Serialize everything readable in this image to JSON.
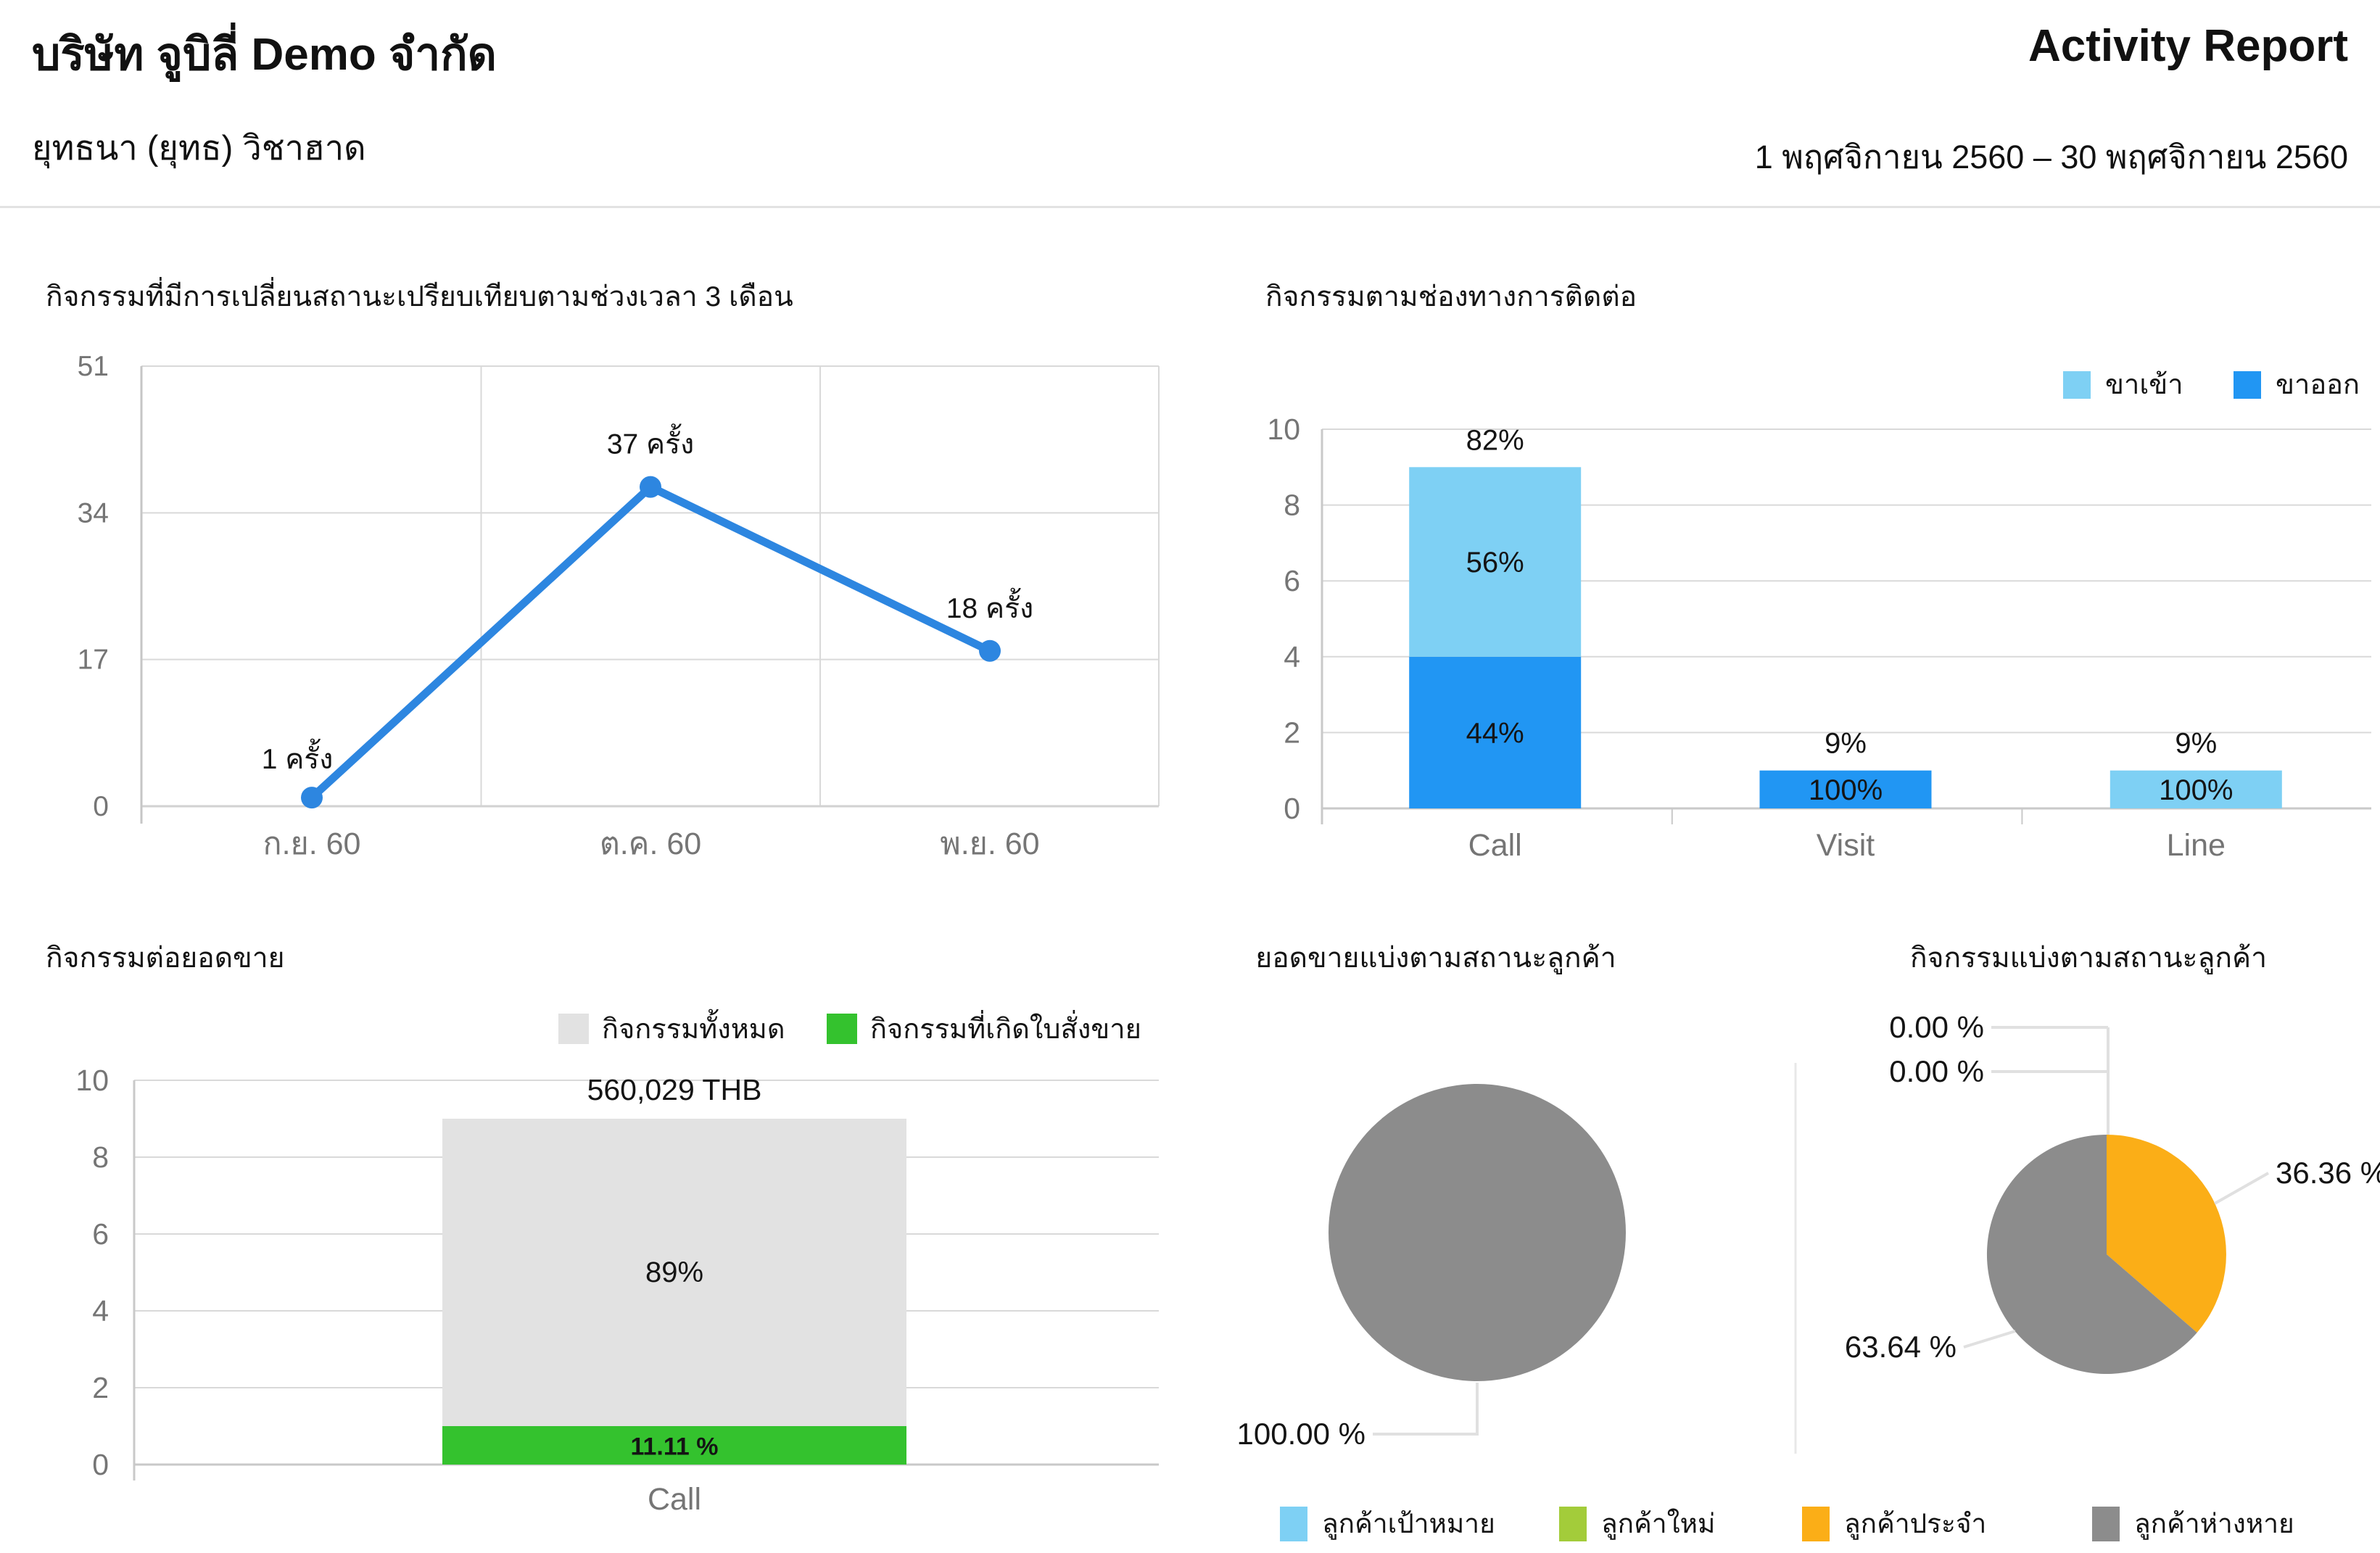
{
  "header": {
    "company_name": "บริษัท จูบิลี่ Demo จำกัด",
    "owner_name": "ยุทธนา (ยุทธ) วิชาฮาด",
    "report_title": "Activity Report",
    "report_period": "1 พฤศจิกายน 2560 – 30 พฤศจิกายน 2560"
  },
  "colors": {
    "line_blue": "#2D86E0",
    "inbound_light_blue": "#7ED0F4",
    "outbound_dark_blue": "#2196F3",
    "total_gray": "#E2E2E2",
    "sale_green": "#34C22E",
    "pie_gray": "#8C8C8C",
    "pie_orange": "#FBAE17",
    "legend_lime": "#A3CC3A",
    "grid_gray": "#D9D9D9"
  },
  "customer_status_legend": [
    {
      "label": "ลูกค้าเป้าหมาย",
      "color": "#7ED0F4"
    },
    {
      "label": "ลูกค้าใหม่",
      "color": "#A3CC3A"
    },
    {
      "label": "ลูกค้าประจำ",
      "color": "#FBAE17"
    },
    {
      "label": "ลูกค้าห่างหาย",
      "color": "#8C8C8C"
    }
  ],
  "chart_data": [
    {
      "id": "status_change_line",
      "type": "line",
      "title": "กิจกรรมที่มีการเปลี่ยนสถานะเปรียบเทียบตามช่วงเวลา 3 เดือน",
      "categories": [
        "ก.ย. 60",
        "ต.ค. 60",
        "พ.ย. 60"
      ],
      "values": [
        1,
        37,
        18
      ],
      "point_labels": [
        "1 ครั้ง",
        "37 ครั้ง",
        "18 ครั้ง"
      ],
      "y_ticks": [
        0,
        17,
        34,
        51
      ],
      "ylim": [
        0,
        51
      ],
      "line_color": "#2D86E0",
      "grid": true,
      "legend_position": "none"
    },
    {
      "id": "channel_stacked_bar",
      "type": "bar",
      "title": "กิจกรรมตามช่องทางการติดต่อ",
      "categories": [
        "Call",
        "Visit",
        "Line"
      ],
      "series_legend": [
        {
          "label": "ขาเข้า",
          "color": "#7ED0F4"
        },
        {
          "label": "ขาออก",
          "color": "#2196F3"
        }
      ],
      "bars": [
        {
          "category": "Call",
          "total_label": "82%",
          "segments": [
            {
              "series": "ขาออก",
              "value": 4,
              "label": "44%"
            },
            {
              "series": "ขาเข้า",
              "value": 5,
              "label": "56%"
            }
          ]
        },
        {
          "category": "Visit",
          "total_label": "9%",
          "segments": [
            {
              "series": "ขาออก",
              "value": 1,
              "label": "100%"
            }
          ]
        },
        {
          "category": "Line",
          "total_label": "9%",
          "segments": [
            {
              "series": "ขาเข้า",
              "value": 1,
              "label": "100%"
            }
          ]
        }
      ],
      "y_ticks": [
        0,
        2,
        4,
        6,
        8,
        10
      ],
      "ylim": [
        0,
        10
      ],
      "grid": true,
      "legend_position": "top-right"
    },
    {
      "id": "activity_sales_bar",
      "type": "bar",
      "title": "กิจกรรมต่อยอดขาย",
      "categories": [
        "Call"
      ],
      "series_legend": [
        {
          "label": "กิจกรรมทั้งหมด",
          "color": "#E2E2E2"
        },
        {
          "label": "กิจกรรมที่เกิดใบสั่งขาย",
          "color": "#34C22E"
        }
      ],
      "bars": [
        {
          "category": "Call",
          "total_label": "560,029 THB",
          "segments": [
            {
              "series": "กิจกรรมที่เกิดใบสั่งขาย",
              "value": 1,
              "label": "11.11 %"
            },
            {
              "series": "กิจกรรมทั้งหมด",
              "value": 8,
              "label": "89%"
            }
          ]
        }
      ],
      "y_ticks": [
        0,
        2,
        4,
        6,
        8,
        10
      ],
      "ylim": [
        0,
        10
      ],
      "grid": true,
      "legend_position": "top-right"
    },
    {
      "id": "sales_by_status_pie",
      "type": "pie",
      "title": "ยอดขายแบ่งตามสถานะลูกค้า",
      "slices": [
        {
          "label": "ลูกค้าห่างหาย",
          "value": 100,
          "display": "100.00 %",
          "color": "#8C8C8C"
        }
      ]
    },
    {
      "id": "activity_by_status_pie",
      "type": "pie",
      "title": "กิจกรรมแบ่งตามสถานะลูกค้า",
      "slices": [
        {
          "label": "ลูกค้าประจำ",
          "value": 36.36,
          "display": "36.36 %",
          "color": "#FBAE17"
        },
        {
          "label": "ลูกค้าห่างหาย",
          "value": 63.64,
          "display": "63.64 %",
          "color": "#8C8C8C"
        },
        {
          "label": "ลูกค้าเป้าหมาย",
          "value": 0,
          "display": "0.00 %",
          "color": "#7ED0F4"
        },
        {
          "label": "ลูกค้าใหม่",
          "value": 0,
          "display": "0.00 %",
          "color": "#A3CC3A"
        }
      ]
    }
  ]
}
